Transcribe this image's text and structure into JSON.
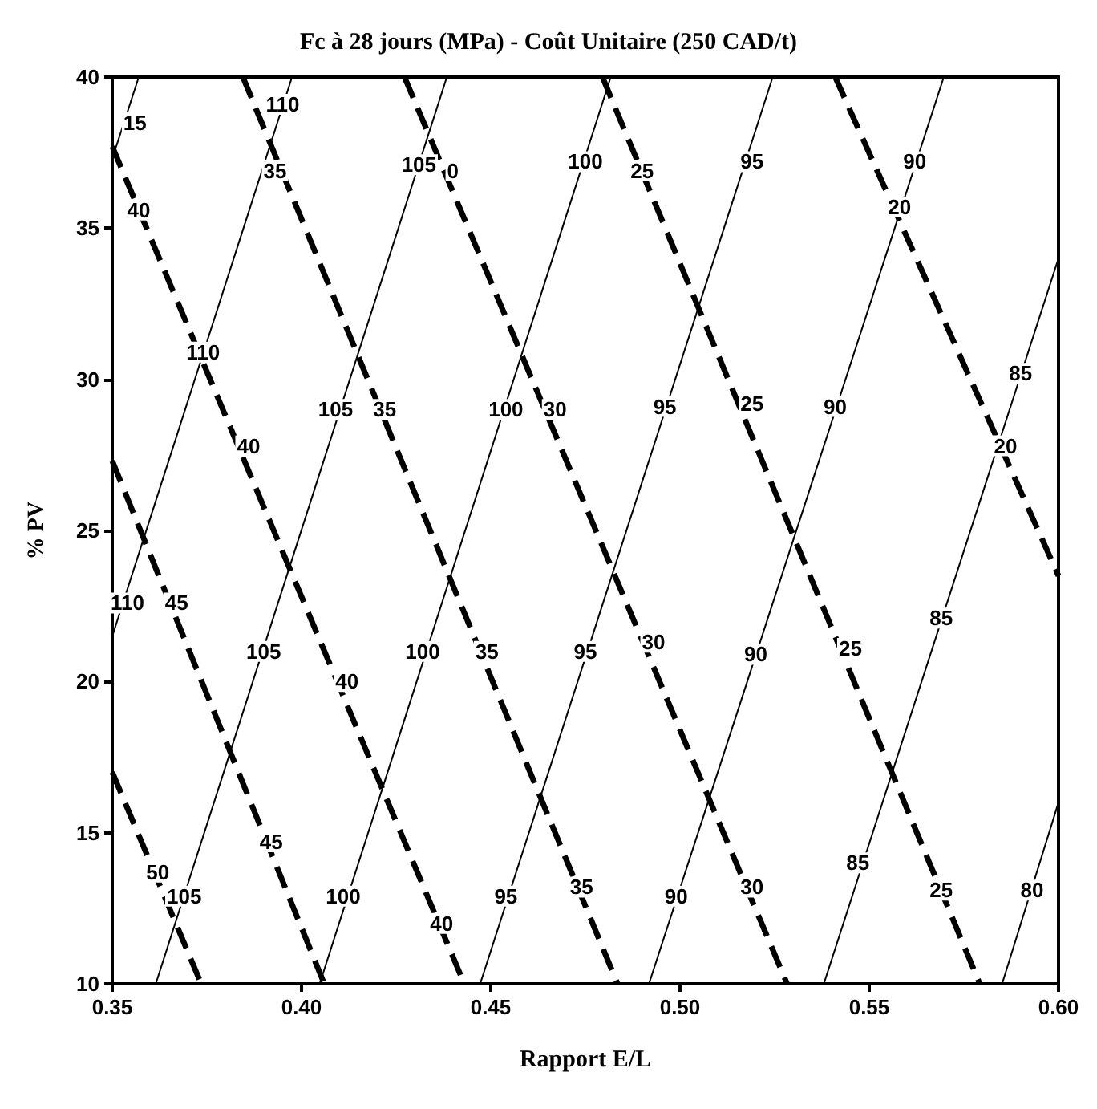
{
  "chart_data": {
    "type": "line",
    "title": "Fc à 28 jours (MPa) - Coût Unitaire (250 CAD/t)",
    "xlabel": "Rapport E/L",
    "ylabel": "% PV",
    "xlim": [
      0.35,
      0.6
    ],
    "xticks": [
      0.35,
      {
        "value": 0.4,
        "label": "0.40"
      },
      0.45,
      {
        "value": 0.5,
        "label": "0.50"
      },
      0.55,
      {
        "value": 0.6,
        "label": "0.60"
      }
    ],
    "ylim": [
      10,
      40
    ],
    "yticks": [
      10,
      15,
      20,
      25,
      30,
      35,
      40
    ],
    "grid": false,
    "legend": false,
    "marker": "none",
    "series": [
      {
        "color": "#000000",
        "line_style": "solid",
        "x": [
          0.35,
          0.357
        ],
        "values": [
          37.3,
          40
        ]
      },
      {
        "color": "#000000",
        "line_style": "solid",
        "x": [
          0.35,
          0.3975
        ],
        "values": [
          21.5,
          40
        ]
      },
      {
        "color": "#000000",
        "line_style": "solid",
        "x": [
          0.3615,
          0.4384
        ],
        "values": [
          10,
          40
        ]
      },
      {
        "color": "#000000",
        "line_style": "solid",
        "x": [
          0.4048,
          0.4817
        ],
        "values": [
          10,
          40
        ]
      },
      {
        "color": "#000000",
        "line_style": "solid",
        "x": [
          0.4472,
          0.5245
        ],
        "values": [
          10,
          40
        ]
      },
      {
        "color": "#000000",
        "line_style": "solid",
        "x": [
          0.4918,
          0.5697
        ],
        "values": [
          10,
          40
        ]
      },
      {
        "color": "#000000",
        "line_style": "solid",
        "x": [
          0.538,
          0.6
        ],
        "values": [
          10,
          34
        ]
      },
      {
        "color": "#000000",
        "line_style": "solid",
        "x": [
          0.5851,
          0.6
        ],
        "values": [
          10,
          16
        ]
      },
      {
        "color": "#000000",
        "line_style": "dashed",
        "x": [
          0.35,
          0.3735
        ],
        "values": [
          17,
          10
        ]
      },
      {
        "color": "#000000",
        "line_style": "dashed",
        "x": [
          0.35,
          0.406
        ],
        "values": [
          27.3,
          10
        ]
      },
      {
        "color": "#000000",
        "line_style": "dashed",
        "x": [
          0.35,
          0.443
        ],
        "values": [
          37.7,
          10
        ]
      },
      {
        "color": "#000000",
        "line_style": "dashed",
        "x": [
          0.3845,
          0.4835
        ],
        "values": [
          40,
          10
        ]
      },
      {
        "color": "#000000",
        "line_style": "dashed",
        "x": [
          0.4272,
          0.5283
        ],
        "values": [
          40,
          10
        ]
      },
      {
        "color": "#000000",
        "line_style": "dashed",
        "x": [
          0.4795,
          0.5792
        ],
        "values": [
          40,
          10
        ]
      },
      {
        "color": "#000000",
        "line_style": "dashed",
        "x": [
          0.541,
          0.6
        ],
        "values": [
          40,
          23.5
        ]
      }
    ],
    "annotations": [
      {
        "text": "15",
        "x": 0.356,
        "y": 38.5
      },
      {
        "text": "110",
        "x": 0.395,
        "y": 39.1
      },
      {
        "text": "35",
        "x": 0.393,
        "y": 36.9
      },
      {
        "text": "105",
        "x": 0.431,
        "y": 37.1
      },
      {
        "text": "0",
        "x": 0.44,
        "y": 36.9
      },
      {
        "text": "100",
        "x": 0.475,
        "y": 37.2
      },
      {
        "text": "25",
        "x": 0.49,
        "y": 36.9
      },
      {
        "text": "95",
        "x": 0.519,
        "y": 37.2
      },
      {
        "text": "90",
        "x": 0.562,
        "y": 37.2
      },
      {
        "text": "20",
        "x": 0.558,
        "y": 35.7
      },
      {
        "text": "40",
        "x": 0.357,
        "y": 35.6
      },
      {
        "text": "110",
        "x": 0.374,
        "y": 30.9
      },
      {
        "text": "105",
        "x": 0.409,
        "y": 29
      },
      {
        "text": "35",
        "x": 0.422,
        "y": 29
      },
      {
        "text": "100",
        "x": 0.454,
        "y": 29
      },
      {
        "text": "30",
        "x": 0.467,
        "y": 29
      },
      {
        "text": "95",
        "x": 0.496,
        "y": 29.1
      },
      {
        "text": "25",
        "x": 0.519,
        "y": 29.2
      },
      {
        "text": "90",
        "x": 0.541,
        "y": 29.1
      },
      {
        "text": "85",
        "x": 0.59,
        "y": 30.2
      },
      {
        "text": "20",
        "x": 0.586,
        "y": 27.8
      },
      {
        "text": "40",
        "x": 0.386,
        "y": 27.8
      },
      {
        "text": "110",
        "x": 0.354,
        "y": 22.6
      },
      {
        "text": "45",
        "x": 0.367,
        "y": 22.6
      },
      {
        "text": "105",
        "x": 0.39,
        "y": 21
      },
      {
        "text": "100",
        "x": 0.432,
        "y": 21
      },
      {
        "text": "35",
        "x": 0.449,
        "y": 21
      },
      {
        "text": "40",
        "x": 0.412,
        "y": 20
      },
      {
        "text": "95",
        "x": 0.475,
        "y": 21
      },
      {
        "text": "30",
        "x": 0.493,
        "y": 21.3
      },
      {
        "text": "90",
        "x": 0.52,
        "y": 20.9
      },
      {
        "text": "25",
        "x": 0.545,
        "y": 21.1
      },
      {
        "text": "85",
        "x": 0.569,
        "y": 22.1
      },
      {
        "text": "45",
        "x": 0.392,
        "y": 14.7
      },
      {
        "text": "50",
        "x": 0.362,
        "y": 13.7
      },
      {
        "text": "105",
        "x": 0.369,
        "y": 12.9
      },
      {
        "text": "100",
        "x": 0.411,
        "y": 12.9
      },
      {
        "text": "40",
        "x": 0.437,
        "y": 12
      },
      {
        "text": "95",
        "x": 0.454,
        "y": 12.9
      },
      {
        "text": "35",
        "x": 0.474,
        "y": 13.2
      },
      {
        "text": "90",
        "x": 0.499,
        "y": 12.9
      },
      {
        "text": "30",
        "x": 0.519,
        "y": 13.2
      },
      {
        "text": "85",
        "x": 0.547,
        "y": 14
      },
      {
        "text": "25",
        "x": 0.569,
        "y": 13.1
      },
      {
        "text": "80",
        "x": 0.593,
        "y": 13.1
      }
    ]
  }
}
